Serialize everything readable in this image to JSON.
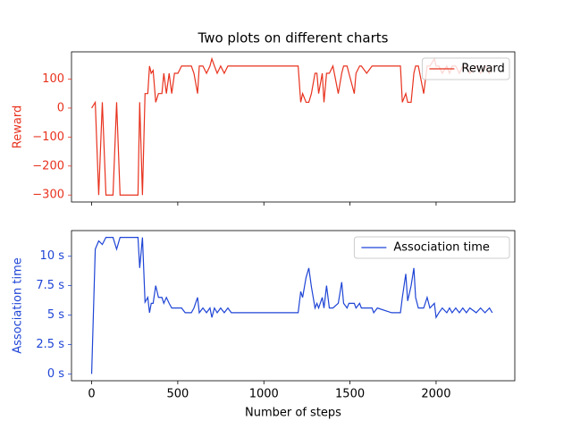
{
  "title": "Two plots on different charts",
  "chart_data": [
    {
      "type": "line",
      "ylabel": "Reward",
      "legend": "upper right",
      "xtick_labels": false,
      "x": [
        0,
        21,
        41,
        62,
        83,
        124,
        145,
        165,
        269,
        279,
        295,
        310,
        326,
        336,
        346,
        357,
        372,
        388,
        408,
        419,
        434,
        450,
        465,
        481,
        501,
        522,
        543,
        579,
        594,
        615,
        625,
        646,
        667,
        687,
        698,
        713,
        729,
        749,
        770,
        791,
        811,
        1199,
        1214,
        1225,
        1245,
        1261,
        1276,
        1297,
        1308,
        1318,
        1339,
        1349,
        1364,
        1380,
        1401,
        1432,
        1452,
        1463,
        1483,
        1494,
        1525,
        1535,
        1556,
        1566,
        1597,
        1628,
        1638,
        1659,
        1742,
        1793,
        1804,
        1824,
        1835,
        1855,
        1871,
        1881,
        1897,
        1928,
        1948,
        1964,
        1990,
        2000,
        2016,
        2036,
        2062,
        2078,
        2093,
        2114,
        2135,
        2155,
        2176,
        2196,
        2233,
        2258,
        2284,
        2310,
        2326
      ],
      "series": [
        {
          "name": "Reward",
          "color": "#e8321e",
          "values": [
            0,
            20,
            -300,
            20,
            -300,
            -300,
            20,
            -300,
            -300,
            20,
            -300,
            50,
            50,
            145,
            120,
            130,
            20,
            50,
            50,
            120,
            50,
            120,
            50,
            120,
            120,
            145,
            145,
            145,
            120,
            50,
            145,
            145,
            120,
            145,
            170,
            145,
            120,
            145,
            120,
            145,
            145,
            145,
            20,
            50,
            20,
            20,
            50,
            120,
            120,
            50,
            120,
            20,
            120,
            120,
            145,
            50,
            120,
            145,
            145,
            120,
            50,
            120,
            145,
            145,
            120,
            145,
            145,
            145,
            145,
            145,
            20,
            50,
            20,
            20,
            120,
            145,
            145,
            50,
            145,
            145,
            170,
            145,
            145,
            120,
            145,
            120,
            145,
            145,
            120,
            145,
            145,
            120,
            145,
            120,
            145,
            120,
            145
          ]
        }
      ],
      "xlim": [
        -117,
        2457
      ],
      "xticks": [
        0,
        500,
        1000,
        1500,
        2000
      ],
      "ylim": [
        -324,
        194
      ],
      "yticks": [
        {
          "value": -300,
          "label": "−300"
        },
        {
          "value": -200,
          "label": "−200"
        },
        {
          "value": -100,
          "label": "−100"
        },
        0,
        100
      ]
    },
    {
      "type": "line",
      "ylabel": "Association time",
      "xlabel": "Number of steps",
      "legend": "upper right",
      "xtick_labels": true,
      "x": [
        0,
        21,
        41,
        62,
        83,
        124,
        145,
        165,
        269,
        279,
        295,
        310,
        326,
        336,
        346,
        357,
        372,
        388,
        408,
        419,
        434,
        450,
        465,
        481,
        501,
        522,
        543,
        579,
        594,
        615,
        625,
        646,
        667,
        687,
        698,
        713,
        729,
        749,
        770,
        791,
        811,
        1199,
        1214,
        1225,
        1245,
        1261,
        1276,
        1297,
        1308,
        1318,
        1339,
        1349,
        1364,
        1380,
        1401,
        1432,
        1452,
        1463,
        1483,
        1494,
        1525,
        1535,
        1556,
        1566,
        1597,
        1628,
        1638,
        1659,
        1742,
        1793,
        1804,
        1824,
        1835,
        1855,
        1871,
        1881,
        1897,
        1928,
        1948,
        1964,
        1990,
        2000,
        2016,
        2036,
        2062,
        2078,
        2093,
        2114,
        2135,
        2155,
        2176,
        2196,
        2233,
        2258,
        2284,
        2310,
        2326
      ],
      "series": [
        {
          "name": "Association time",
          "color": "#1f45d6",
          "values": [
            0,
            10.6,
            11.3,
            11,
            11.6,
            11.6,
            10.6,
            11.6,
            11.6,
            9,
            11.6,
            6.1,
            6.5,
            5.2,
            6,
            6,
            7.5,
            6.5,
            6.5,
            6,
            6.5,
            6,
            5.6,
            5.6,
            5.6,
            5.6,
            5.2,
            5.2,
            5.6,
            6.5,
            5.2,
            5.6,
            5.2,
            5.6,
            4.8,
            5.6,
            5.2,
            5.6,
            5.2,
            5.6,
            5.2,
            5.2,
            7,
            6.5,
            8.2,
            9,
            7.4,
            5.6,
            6,
            5.6,
            6.5,
            5.6,
            7.5,
            5.6,
            5.6,
            6,
            7.8,
            6,
            5.6,
            6,
            6,
            5.6,
            6,
            5.6,
            5.6,
            5.6,
            5.2,
            5.6,
            5.2,
            5.2,
            6.5,
            8.5,
            6.2,
            7.5,
            9,
            6.5,
            5.6,
            5.6,
            6.5,
            5.6,
            6,
            4.8,
            5.2,
            5.6,
            5.2,
            5.6,
            5.2,
            5.6,
            5.2,
            5.6,
            5.2,
            5.6,
            5.2,
            5.6,
            5.2,
            5.6,
            5.2
          ]
        }
      ],
      "xlim": [
        -117,
        2457
      ],
      "xticks": [
        0,
        500,
        1000,
        1500,
        2000
      ],
      "ylim": [
        -0.58,
        12.18
      ],
      "yticks": [
        {
          "value": 0,
          "label": "0 s"
        },
        {
          "value": 2.5,
          "label": "2.5 s"
        },
        {
          "value": 5,
          "label": "5 s"
        },
        {
          "value": 7.5,
          "label": "7.5 s"
        },
        {
          "value": 10,
          "label": "10 s"
        }
      ]
    }
  ]
}
